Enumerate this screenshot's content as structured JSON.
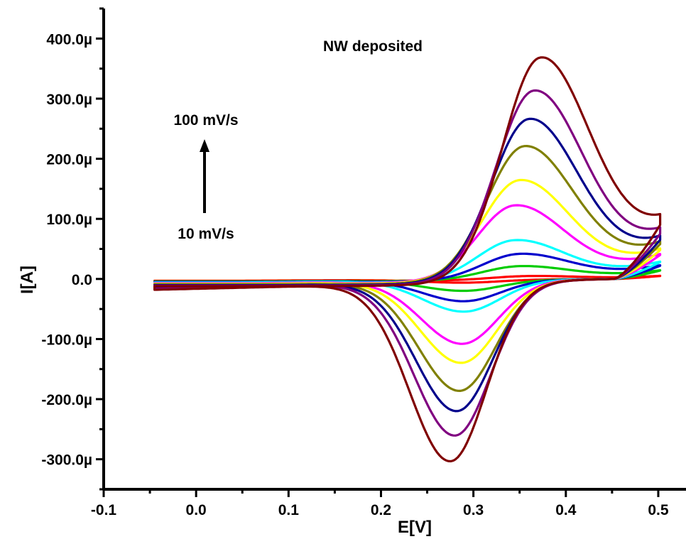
{
  "chart_data": {
    "type": "line",
    "title": "NW deposited",
    "xlabel": "E[V]",
    "ylabel": "I[A]",
    "xlim": [
      -0.1,
      0.53
    ],
    "ylim": [
      -350,
      450
    ],
    "y_unit": "µA",
    "xticks": [
      -0.1,
      0.0,
      0.1,
      0.2,
      0.3,
      0.4,
      0.5
    ],
    "xtick_labels": [
      "-0.1",
      "0.0",
      "0.1",
      "0.2",
      "0.3",
      "0.4",
      "0.5"
    ],
    "yticks": [
      400,
      300,
      200,
      100,
      0,
      -100,
      -200,
      -300
    ],
    "ytick_labels": [
      "400.0µ",
      "300.0µ",
      "200.0µ",
      "100.0µ",
      "0.0",
      "-100.0µ",
      "-200.0µ",
      "-300.0µ"
    ],
    "grid": false,
    "legend": "none",
    "annotations": {
      "high_rate": "100 mV/s",
      "low_rate": "10 mV/s",
      "arrow": "up"
    },
    "series": [
      {
        "color": "#ff0000",
        "Epa": 0.36,
        "Ipa": 6,
        "Epc": 0.29,
        "Ipc": -5,
        "start_anodic": -3,
        "start_cathodic": -4,
        "end_value": 5
      },
      {
        "color": "#00cc00",
        "Epa": 0.35,
        "Ipa": 22,
        "Epc": 0.29,
        "Ipc": -18,
        "start_anodic": -4,
        "start_cathodic": -6,
        "end_value": 14
      },
      {
        "color": "#0000cc",
        "Epa": 0.35,
        "Ipa": 42,
        "Epc": 0.29,
        "Ipc": -35,
        "start_anodic": -5,
        "start_cathodic": -7,
        "end_value": 22
      },
      {
        "color": "#00ffff",
        "Epa": 0.345,
        "Ipa": 65,
        "Epc": 0.29,
        "Ipc": -52,
        "start_anodic": -6,
        "start_cathodic": -8,
        "end_value": 28
      },
      {
        "color": "#ff00ff",
        "Epa": 0.345,
        "Ipa": 122,
        "Epc": 0.288,
        "Ipc": -105,
        "start_anodic": -7,
        "start_cathodic": -10,
        "end_value": 40
      },
      {
        "color": "#ffff00",
        "Epa": 0.35,
        "Ipa": 163,
        "Epc": 0.287,
        "Ipc": -136,
        "start_anodic": -8,
        "start_cathodic": -12,
        "end_value": 48
      },
      {
        "color": "#808000",
        "Epa": 0.355,
        "Ipa": 218,
        "Epc": 0.285,
        "Ipc": -182,
        "start_anodic": -9,
        "start_cathodic": -14,
        "end_value": 58
      },
      {
        "color": "#00008b",
        "Epa": 0.36,
        "Ipa": 262,
        "Epc": 0.282,
        "Ipc": -215,
        "start_anodic": -10,
        "start_cathodic": -16,
        "end_value": 65
      },
      {
        "color": "#800080",
        "Epa": 0.365,
        "Ipa": 307,
        "Epc": 0.28,
        "Ipc": -255,
        "start_anodic": -11,
        "start_cathodic": -18,
        "end_value": 75
      },
      {
        "color": "#800000",
        "Epa": 0.372,
        "Ipa": 358,
        "Epc": 0.275,
        "Ipc": -297,
        "start_anodic": -12,
        "start_cathodic": -20,
        "end_value": 90
      }
    ],
    "x_range": [
      -0.045,
      0.502
    ]
  }
}
